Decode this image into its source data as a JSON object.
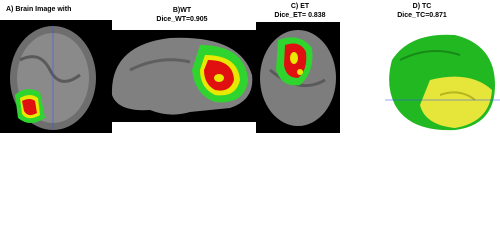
{
  "panels": [
    {
      "caption": [
        "A) Brain Image with"
      ]
    },
    {
      "caption": [
        "B)WT",
        "Dice_WT=0.905"
      ]
    },
    {
      "caption": [
        "C) ET",
        "Dice_ET= 0.838"
      ]
    },
    {
      "caption": [
        "D) TC",
        "Dice_TC=0.871"
      ]
    }
  ]
}
